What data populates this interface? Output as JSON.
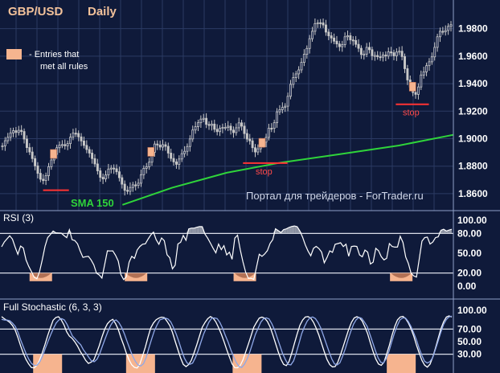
{
  "header": {
    "pair": "GBP/USD",
    "period": "Daily"
  },
  "legend": {
    "entries_label_line1": "- Entries that",
    "entries_label_line2": "met all rules"
  },
  "watermark": "Портал для трейдеров - ForTrader.ru",
  "sma_label": "SMA 150",
  "stop_label": "stop",
  "colors": {
    "background": "#0f1a3a",
    "candles": "#c8c8c8",
    "sma": "#2fd43a",
    "stop": "#ff3333",
    "entry": "#f6b48f",
    "oscillator": "#ffffff",
    "stochastic_signal": "#8fa8e8",
    "overbought_fill": "#a7adb8",
    "oversold_fill": "#f6b48f"
  },
  "chart_data": [
    {
      "type": "candlestick",
      "title": "GBP/USD Daily",
      "ylim": [
        1.85,
        1.995
      ],
      "y_ticks": [
        "1.9800",
        "1.9600",
        "1.9400",
        "1.9200",
        "1.9000",
        "1.8800",
        "1.8600"
      ],
      "close": [
        1.8948,
        1.8985,
        1.901,
        1.9042,
        1.9058,
        1.9045,
        1.9061,
        1.9052,
        1.8997,
        1.8935,
        1.8903,
        1.8855,
        1.8802,
        1.8748,
        1.8705,
        1.8695,
        1.8731,
        1.8796,
        1.8845,
        1.8886,
        1.8934,
        1.8953,
        1.8957,
        1.8948,
        1.8964,
        1.9011,
        1.904,
        1.9038,
        1.9013,
        1.8983,
        1.8951,
        1.8921,
        1.8895,
        1.8855,
        1.8816,
        1.8766,
        1.8719,
        1.8707,
        1.8736,
        1.8779,
        1.8786,
        1.8781,
        1.8759,
        1.8716,
        1.8669,
        1.8624,
        1.8617,
        1.8645,
        1.8664,
        1.866,
        1.8676,
        1.8738,
        1.8784,
        1.8796,
        1.8829,
        1.8901,
        1.8961,
        1.8954,
        1.8939,
        1.8956,
        1.8944,
        1.8895,
        1.8856,
        1.8831,
        1.8813,
        1.8852,
        1.8891,
        1.8908,
        1.8943,
        1.8998,
        1.9063,
        1.9087,
        1.9116,
        1.9142,
        1.9148,
        1.9104,
        1.9096,
        1.9106,
        1.9068,
        1.9051,
        1.9076,
        1.9082,
        1.9082,
        1.9091,
        1.9062,
        1.9044,
        1.9079,
        1.9115,
        1.9091,
        1.9037,
        1.8997,
        1.8984,
        1.8934,
        1.8903,
        1.8926,
        1.8967,
        1.8975,
        1.9009,
        1.9076,
        1.9075,
        1.9116,
        1.9195,
        1.9211,
        1.9227,
        1.9236,
        1.9308,
        1.9395,
        1.9444,
        1.9471,
        1.95,
        1.9555,
        1.9614,
        1.9656,
        1.9727,
        1.9781,
        1.9837,
        1.9843,
        1.9842,
        1.9827,
        1.9775,
        1.9748,
        1.9732,
        1.9709,
        1.9689,
        1.9669,
        1.9684,
        1.9741,
        1.9749,
        1.9718,
        1.9714,
        1.9686,
        1.9657,
        1.9612,
        1.9615,
        1.9664,
        1.9647,
        1.9603,
        1.9605,
        1.9596,
        1.9593,
        1.9608,
        1.9601,
        1.9631,
        1.9625,
        1.9602,
        1.963,
        1.9636,
        1.9597,
        1.9509,
        1.9427,
        1.9375,
        1.9336,
        1.9322,
        1.9376,
        1.9463,
        1.9486,
        1.9531,
        1.9559,
        1.9595,
        1.9664,
        1.9741,
        1.9781,
        1.9777,
        1.9787,
        1.9817,
        1.9829
      ],
      "sma150": {
        "x": [
          0.27,
          0.38,
          0.5,
          0.62,
          0.75,
          0.88,
          1.0
        ],
        "y": [
          1.8519,
          1.8644,
          1.8752,
          1.8826,
          1.8887,
          1.895,
          1.9028
        ]
      },
      "entries_x": [
        0.118,
        0.333,
        0.578,
        0.91
      ],
      "stops": [
        {
          "x": [
            0.095,
            0.152
          ],
          "y": 1.8625
        },
        {
          "x": [
            0.536,
            0.634
          ],
          "y": 1.8822
        },
        {
          "x": [
            0.873,
            0.946
          ],
          "y": 1.925
        }
      ]
    },
    {
      "type": "line",
      "title": "RSI (3)",
      "ylim": [
        0,
        100
      ],
      "y_ticks": [
        "100.00",
        "80.00",
        "50.00",
        "20.00",
        "0.00"
      ],
      "levels": [
        80,
        20
      ],
      "values": [
        59.7,
        67.1,
        71.8,
        76.5,
        71.4,
        59.1,
        48.4,
        60.8,
        57.9,
        39.7,
        30.1,
        22.2,
        13.4,
        11.2,
        22.1,
        40.1,
        60.4,
        73.6,
        78.3,
        83.7,
        81,
        80.7,
        80.5,
        76.8,
        73.6,
        85.6,
        70.5,
        69.1,
        64.1,
        53.2,
        43.7,
        44.8,
        45.2,
        39.9,
        32.3,
        19.6,
        17.1,
        12.3,
        32.8,
        53.6,
        53.4,
        53.5,
        46.9,
        38.2,
        17.5,
        10,
        14.3,
        36.3,
        45.3,
        42.2,
        55,
        60.2,
        63.7,
        64.3,
        71.4,
        77.5,
        81.9,
        70.5,
        63.5,
        73.2,
        69,
        47.7,
        43,
        26.4,
        31.8,
        64,
        66.6,
        76.9,
        69.6,
        86.9,
        88.1,
        88.1,
        89.4,
        90.4,
        90.3,
        79,
        72.8,
        65.3,
        57.6,
        50.6,
        63.9,
        55.4,
        61.5,
        47.5,
        51.6,
        40.7,
        72.9,
        77.4,
        55.2,
        37.1,
        21.2,
        11.7,
        12.1,
        10.3,
        28.9,
        48.4,
        45.2,
        48.8,
        53.9,
        64.9,
        70.6,
        87.1,
        84.3,
        81.4,
        85.9,
        86.9,
        89.1,
        90.6,
        91.3,
        90.3,
        83.6,
        74.1,
        62.6,
        53.3,
        46.1,
        57.5,
        60.4,
        57.1,
        51.6,
        35.5,
        43.5,
        53.5,
        51.4,
        63.5,
        64.6,
        65.8,
        60.1,
        63.6,
        45.4,
        60.2,
        60.9,
        60.3,
        47.5,
        44.6,
        54.8,
        51.7,
        33.7,
        36.5,
        57.5,
        53.8,
        44.8,
        39.9,
        42.3,
        64.6,
        60.3,
        59.3,
        59.4,
        75.6,
        66.4,
        44.3,
        34.5,
        19.5,
        15.5,
        13.8,
        40.8,
        68.3,
        73.6,
        74.5,
        63.9,
        66.9,
        73.6,
        74.9,
        84.8,
        86.3,
        83.6,
        85.1,
        86.3
      ],
      "entries_x": [
        0.09,
        0.3,
        0.54,
        0.885
      ]
    },
    {
      "type": "line",
      "title": "Full Stochastic (6, 3, 3)",
      "ylim": [
        0,
        100
      ],
      "y_ticks": [
        "100.00",
        "70.00",
        "50.00",
        "30.00"
      ],
      "levels": [
        70,
        30
      ],
      "series": [
        {
          "values": [
            89.9,
            86.6,
            83.8,
            80.9,
            75.8,
            68.3,
            56.9,
            43.4,
            31.6,
            21.5,
            14.3,
            8.6,
            8.2,
            12.5,
            20.5,
            32.4,
            45.6,
            59.5,
            72.3,
            84.2,
            88.6,
            89.7,
            84.8,
            76.8,
            65.7,
            58.9,
            55.3,
            49.6,
            42.8,
            34.5,
            27.7,
            20.1,
            15.3,
            17.2,
            20.9,
            31.8,
            43.3,
            57.3,
            69.8,
            78.4,
            83.1,
            85.6,
            78.8,
            69.5,
            56.4,
            44.7,
            31.5,
            20.8,
            12.9,
            9,
            7.9,
            14.5,
            27.4,
            41.3,
            57.5,
            71.8,
            79.8,
            85,
            87.6,
            89.1,
            88.3,
            82.4,
            75.7,
            64.9,
            50.6,
            37.2,
            23.8,
            13.7,
            10.3,
            13.6,
            20.6,
            32.6,
            45.4,
            59.6,
            73,
            80.5,
            86.6,
            90,
            87.6,
            81.5,
            72.4,
            62.1,
            50.4,
            37.5,
            25.4,
            14.5,
            8.5,
            8.3,
            12,
            20.8,
            33.4,
            46.3,
            59.7,
            73,
            80.7,
            87.6,
            89.1,
            87.4,
            82.3,
            73.5,
            61.2,
            47.6,
            33.9,
            21.8,
            13.8,
            11.8,
            18.4,
            32,
            47.3,
            62.5,
            76.1,
            84.5,
            89.4,
            90,
            87.4,
            80.9,
            71.7,
            60.4,
            46.9,
            33.9,
            21.5,
            13.3,
            9.8,
            10.2,
            17.5,
            29.5,
            42.8,
            56.2,
            69.7,
            80.8,
            87.8,
            89.8,
            88.1,
            82.5,
            73.3,
            62.4,
            47.7,
            33.8,
            22.3,
            14.2,
            12.2,
            17.3,
            30.1,
            44.4,
            60.7,
            74.7,
            84.7,
            89.3,
            90.2,
            86.6,
            79.7,
            70.4,
            58.5,
            44.5,
            31.9,
            20.1,
            12.5,
            9.4,
            14.1,
            25.7,
            40.1,
            55.3,
            70.7,
            81.9,
            89.2,
            91.2,
            89.4
          ]
        },
        {
          "values": [
            85.5,
            84.5,
            84.4,
            83.3,
            79.6,
            74.3,
            64.8,
            52.4,
            41.1,
            30.8,
            21.8,
            15,
            12,
            12.5,
            17.7,
            26.8,
            39.1,
            50.3,
            61.1,
            71.1,
            79.7,
            84.6,
            86.8,
            84.6,
            77.3,
            68.1,
            58.9,
            54.2,
            49.4,
            45,
            36.9,
            31,
            24.6,
            18.9,
            18.1,
            22.2,
            31.3,
            43.6,
            55.3,
            66.7,
            76.4,
            82.8,
            84.6,
            80.4,
            73,
            62.6,
            50.2,
            38.5,
            27.3,
            18.9,
            12.7,
            11.1,
            14.8,
            24.9,
            40.3,
            54.4,
            67.7,
            76.9,
            84.8,
            86.1,
            87.6,
            86.2,
            81.5,
            72.5,
            62.1,
            49.8,
            35.9,
            23.6,
            15.9,
            13.8,
            15.8,
            24.2,
            35.2,
            48.7,
            61.8,
            71.6,
            81.1,
            87.3,
            87.8,
            86.8,
            80.6,
            71.5,
            60,
            49.5,
            37.2,
            26.6,
            16.9,
            10.4,
            8.9,
            14,
            22.5,
            33.7,
            47.3,
            61.3,
            71.1,
            81,
            86.4,
            88,
            86.4,
            79,
            69.4,
            56.7,
            43.9,
            31,
            21.5,
            13.7,
            13,
            19.3,
            31.9,
            47,
            62.7,
            73.7,
            82.6,
            88,
            89.4,
            86.8,
            80.5,
            71.7,
            59.2,
            46.5,
            34.1,
            22.6,
            14.5,
            12.9,
            16.1,
            26.7,
            38.9,
            53.3,
            66.4,
            77.8,
            85.1,
            88.9,
            87.2,
            81.2,
            74.1,
            61.5,
            48.8,
            35.8,
            24.1,
            16.9,
            16.1,
            23.1,
            34.4,
            49.6,
            63.7,
            75.2,
            84.6,
            87.8,
            87.8,
            82.6,
            74.6,
            64.4,
            53.4,
            39.8,
            28.3,
            18.8,
            15.9,
            18.1,
            24.2,
            37.3,
            50.9,
            65,
            77.5,
            85.3,
            89.5,
            90.6
          ]
        }
      ],
      "entries_x": [
        0.105,
        0.31,
        0.545,
        0.885
      ]
    }
  ]
}
